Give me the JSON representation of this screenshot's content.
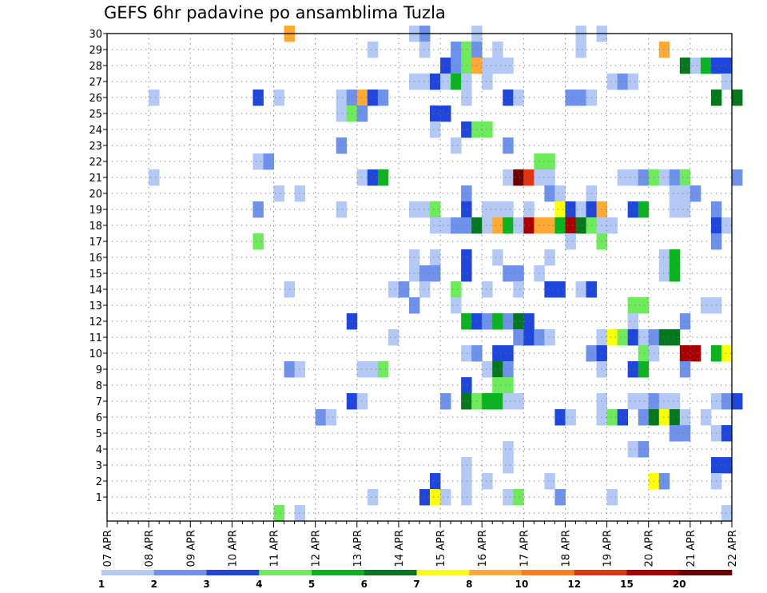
{
  "chart_data": {
    "type": "heatmap",
    "title": "GEFS 6hr padavine po ansamblima Tuzla",
    "x_tick_labels": [
      "07 APR",
      "08 APR",
      "09 APR",
      "10 APR",
      "11 APR",
      "12 APR",
      "13 APR",
      "14 APR",
      "15 APR",
      "16 APR",
      "17 APR",
      "18 APR",
      "19 APR",
      "20 APR",
      "21 APR",
      "22 APR"
    ],
    "x_range_days": [
      0,
      15
    ],
    "steps_per_day": 4,
    "y_tick_labels": [
      "1",
      "2",
      "3",
      "4",
      "5",
      "6",
      "7",
      "8",
      "9",
      "10",
      "11",
      "12",
      "13",
      "14",
      "15",
      "16",
      "17",
      "18",
      "19",
      "20",
      "21",
      "22",
      "23",
      "24",
      "25",
      "26",
      "27",
      "28",
      "29",
      "30"
    ],
    "ylim": [
      0,
      30
    ],
    "grid": true,
    "colorbar": {
      "labels": [
        "1",
        "2",
        "3",
        "4",
        "5",
        "6",
        "7",
        "8",
        "10",
        "12",
        "15",
        "20"
      ],
      "colors": [
        "#b4c8f5",
        "#6e91eb",
        "#1f46dc",
        "#6eeb5a",
        "#0ab41e",
        "#05781e",
        "#ffff00",
        "#ffa832",
        "#ff7d14",
        "#e6320f",
        "#aa0000",
        "#6e0000"
      ]
    },
    "cells": [
      {
        "m": 30,
        "p": [
          [
            17,
            7
          ],
          [
            29,
            0
          ],
          [
            30,
            1
          ],
          [
            35,
            0
          ],
          [
            45,
            0
          ],
          [
            47,
            0
          ]
        ]
      },
      {
        "m": 29,
        "p": [
          [
            25,
            0
          ],
          [
            30,
            0
          ],
          [
            33,
            1
          ],
          [
            34,
            3
          ],
          [
            35,
            1
          ],
          [
            37,
            0
          ],
          [
            45,
            0
          ],
          [
            53,
            7
          ]
        ]
      },
      {
        "m": 28,
        "p": [
          [
            32,
            2
          ],
          [
            33,
            1
          ],
          [
            34,
            3
          ],
          [
            35,
            7
          ],
          [
            36,
            0
          ],
          [
            37,
            0
          ],
          [
            38,
            0
          ],
          [
            55,
            5
          ],
          [
            56,
            0
          ],
          [
            57,
            4
          ],
          [
            58,
            2
          ],
          [
            59,
            2
          ]
        ]
      },
      {
        "m": 27,
        "p": [
          [
            29,
            0
          ],
          [
            30,
            0
          ],
          [
            31,
            2
          ],
          [
            32,
            0
          ],
          [
            33,
            4
          ],
          [
            34,
            0
          ],
          [
            36,
            0
          ],
          [
            48,
            0
          ],
          [
            49,
            1
          ],
          [
            50,
            0
          ],
          [
            59,
            0
          ]
        ]
      },
      {
        "m": 26,
        "p": [
          [
            4,
            0
          ],
          [
            14,
            2
          ],
          [
            16,
            0
          ],
          [
            22,
            0
          ],
          [
            23,
            1
          ],
          [
            24,
            7
          ],
          [
            25,
            2
          ],
          [
            26,
            1
          ],
          [
            34,
            0
          ],
          [
            38,
            2
          ],
          [
            39,
            0
          ],
          [
            44,
            1
          ],
          [
            45,
            1
          ],
          [
            46,
            0
          ],
          [
            58,
            5
          ],
          [
            60,
            5
          ]
        ]
      },
      {
        "m": 25,
        "p": [
          [
            22,
            0
          ],
          [
            23,
            3
          ],
          [
            24,
            1
          ],
          [
            31,
            2
          ],
          [
            32,
            2
          ]
        ]
      },
      {
        "m": 24,
        "p": [
          [
            31,
            0
          ],
          [
            34,
            2
          ],
          [
            35,
            3
          ],
          [
            36,
            3
          ]
        ]
      },
      {
        "m": 23,
        "p": [
          [
            22,
            1
          ],
          [
            33,
            0
          ],
          [
            38,
            1
          ]
        ]
      },
      {
        "m": 22,
        "p": [
          [
            14,
            0
          ],
          [
            15,
            1
          ],
          [
            41,
            3
          ],
          [
            42,
            3
          ]
        ]
      },
      {
        "m": 21,
        "p": [
          [
            4,
            0
          ],
          [
            24,
            0
          ],
          [
            25,
            2
          ],
          [
            26,
            4
          ],
          [
            38,
            0
          ],
          [
            39,
            11
          ],
          [
            40,
            9
          ],
          [
            41,
            0
          ],
          [
            42,
            0
          ],
          [
            49,
            0
          ],
          [
            50,
            0
          ],
          [
            51,
            1
          ],
          [
            52,
            3
          ],
          [
            53,
            0
          ],
          [
            54,
            1
          ],
          [
            55,
            3
          ],
          [
            60,
            1
          ]
        ]
      },
      {
        "m": 20,
        "p": [
          [
            16,
            0
          ],
          [
            18,
            0
          ],
          [
            34,
            1
          ],
          [
            42,
            1
          ],
          [
            43,
            0
          ],
          [
            46,
            0
          ],
          [
            54,
            0
          ],
          [
            55,
            0
          ],
          [
            56,
            1
          ]
        ]
      },
      {
        "m": 19,
        "p": [
          [
            14,
            1
          ],
          [
            22,
            0
          ],
          [
            29,
            0
          ],
          [
            30,
            0
          ],
          [
            31,
            3
          ],
          [
            34,
            2
          ],
          [
            36,
            0
          ],
          [
            37,
            0
          ],
          [
            38,
            0
          ],
          [
            40,
            0
          ],
          [
            43,
            6
          ],
          [
            44,
            2
          ],
          [
            45,
            0
          ],
          [
            46,
            2
          ],
          [
            47,
            7
          ],
          [
            50,
            2
          ],
          [
            51,
            4
          ],
          [
            54,
            0
          ],
          [
            55,
            0
          ],
          [
            58,
            1
          ]
        ]
      },
      {
        "m": 18,
        "p": [
          [
            31,
            0
          ],
          [
            32,
            0
          ],
          [
            33,
            1
          ],
          [
            34,
            1
          ],
          [
            35,
            5
          ],
          [
            36,
            0
          ],
          [
            37,
            7
          ],
          [
            38,
            4
          ],
          [
            39,
            0
          ],
          [
            40,
            10
          ],
          [
            41,
            7
          ],
          [
            42,
            7
          ],
          [
            43,
            4
          ],
          [
            44,
            10
          ],
          [
            45,
            5
          ],
          [
            46,
            3
          ],
          [
            47,
            0
          ],
          [
            48,
            0
          ],
          [
            58,
            2
          ],
          [
            59,
            0
          ]
        ]
      },
      {
        "m": 17,
        "p": [
          [
            14,
            3
          ],
          [
            44,
            0
          ],
          [
            47,
            3
          ],
          [
            58,
            1
          ]
        ]
      },
      {
        "m": 16,
        "p": [
          [
            29,
            0
          ],
          [
            31,
            0
          ],
          [
            34,
            2
          ],
          [
            37,
            0
          ],
          [
            42,
            0
          ],
          [
            53,
            0
          ],
          [
            54,
            4
          ]
        ]
      },
      {
        "m": 15,
        "p": [
          [
            29,
            0
          ],
          [
            30,
            1
          ],
          [
            31,
            1
          ],
          [
            34,
            2
          ],
          [
            38,
            1
          ],
          [
            39,
            1
          ],
          [
            41,
            0
          ],
          [
            53,
            0
          ],
          [
            54,
            4
          ]
        ]
      },
      {
        "m": 14,
        "p": [
          [
            17,
            0
          ],
          [
            27,
            0
          ],
          [
            28,
            1
          ],
          [
            30,
            0
          ],
          [
            33,
            3
          ],
          [
            36,
            0
          ],
          [
            39,
            0
          ],
          [
            42,
            2
          ],
          [
            43,
            2
          ],
          [
            45,
            0
          ],
          [
            46,
            2
          ]
        ]
      },
      {
        "m": 13,
        "p": [
          [
            29,
            1
          ],
          [
            33,
            0
          ],
          [
            50,
            3
          ],
          [
            51,
            3
          ],
          [
            57,
            0
          ],
          [
            58,
            0
          ]
        ]
      },
      {
        "m": 12,
        "p": [
          [
            23,
            2
          ],
          [
            34,
            4
          ],
          [
            35,
            2
          ],
          [
            36,
            1
          ],
          [
            37,
            4
          ],
          [
            38,
            1
          ],
          [
            39,
            5
          ],
          [
            40,
            2
          ],
          [
            50,
            0
          ],
          [
            55,
            1
          ]
        ]
      },
      {
        "m": 11,
        "p": [
          [
            27,
            0
          ],
          [
            39,
            1
          ],
          [
            40,
            2
          ],
          [
            41,
            1
          ],
          [
            42,
            0
          ],
          [
            47,
            0
          ],
          [
            48,
            6
          ],
          [
            49,
            3
          ],
          [
            50,
            2
          ],
          [
            51,
            0
          ],
          [
            52,
            1
          ],
          [
            53,
            5
          ],
          [
            54,
            5
          ]
        ]
      },
      {
        "m": 10,
        "p": [
          [
            34,
            0
          ],
          [
            35,
            1
          ],
          [
            37,
            2
          ],
          [
            38,
            2
          ],
          [
            46,
            1
          ],
          [
            47,
            2
          ],
          [
            51,
            3
          ],
          [
            52,
            0
          ],
          [
            55,
            10
          ],
          [
            56,
            10
          ],
          [
            58,
            4
          ],
          [
            59,
            6
          ]
        ]
      },
      {
        "m": 9,
        "p": [
          [
            17,
            1
          ],
          [
            18,
            0
          ],
          [
            24,
            0
          ],
          [
            25,
            0
          ],
          [
            26,
            3
          ],
          [
            36,
            0
          ],
          [
            37,
            5
          ],
          [
            38,
            1
          ],
          [
            47,
            0
          ],
          [
            50,
            2
          ],
          [
            51,
            4
          ],
          [
            55,
            1
          ]
        ]
      },
      {
        "m": 8,
        "p": [
          [
            34,
            2
          ],
          [
            37,
            3
          ],
          [
            38,
            3
          ]
        ]
      },
      {
        "m": 7,
        "p": [
          [
            23,
            2
          ],
          [
            24,
            0
          ],
          [
            32,
            1
          ],
          [
            34,
            5
          ],
          [
            35,
            3
          ],
          [
            36,
            4
          ],
          [
            37,
            4
          ],
          [
            38,
            0
          ],
          [
            39,
            0
          ],
          [
            47,
            0
          ],
          [
            50,
            0
          ],
          [
            51,
            0
          ],
          [
            52,
            1
          ],
          [
            53,
            0
          ],
          [
            54,
            0
          ],
          [
            58,
            0
          ],
          [
            59,
            1
          ],
          [
            60,
            2
          ]
        ]
      },
      {
        "m": 6,
        "p": [
          [
            20,
            1
          ],
          [
            21,
            0
          ],
          [
            43,
            2
          ],
          [
            44,
            0
          ],
          [
            47,
            0
          ],
          [
            48,
            3
          ],
          [
            49,
            2
          ],
          [
            51,
            1
          ],
          [
            52,
            5
          ],
          [
            53,
            6
          ],
          [
            54,
            5
          ],
          [
            55,
            0
          ],
          [
            57,
            0
          ]
        ]
      },
      {
        "m": 5,
        "p": [
          [
            54,
            1
          ],
          [
            55,
            1
          ],
          [
            58,
            0
          ],
          [
            59,
            2
          ]
        ]
      },
      {
        "m": 4,
        "p": [
          [
            38,
            0
          ],
          [
            50,
            0
          ],
          [
            51,
            1
          ]
        ]
      },
      {
        "m": 3,
        "p": [
          [
            34,
            0
          ],
          [
            38,
            0
          ],
          [
            58,
            2
          ],
          [
            59,
            2
          ]
        ]
      },
      {
        "m": 2,
        "p": [
          [
            31,
            2
          ],
          [
            34,
            0
          ],
          [
            36,
            0
          ],
          [
            42,
            0
          ],
          [
            52,
            6
          ],
          [
            53,
            1
          ],
          [
            58,
            0
          ]
        ]
      },
      {
        "m": 1,
        "p": [
          [
            25,
            0
          ],
          [
            30,
            2
          ],
          [
            31,
            6
          ],
          [
            32,
            0
          ],
          [
            34,
            0
          ],
          [
            38,
            0
          ],
          [
            39,
            3
          ],
          [
            43,
            1
          ],
          [
            48,
            0
          ]
        ]
      },
      {
        "m": 0,
        "p": [
          [
            16,
            3
          ],
          [
            18,
            0
          ],
          [
            59,
            0
          ]
        ]
      }
    ]
  }
}
